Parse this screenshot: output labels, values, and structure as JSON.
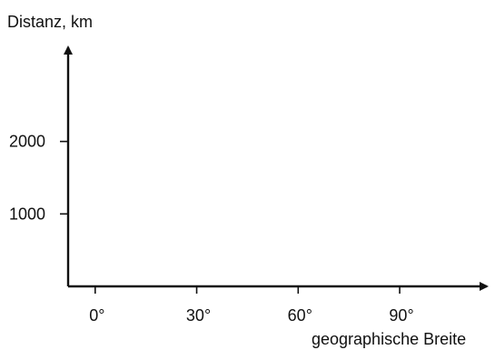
{
  "colors": {
    "ink": "#111111",
    "background": "#ffffff"
  },
  "chart_data": {
    "type": "line",
    "title": "",
    "xlabel": "geographische Breite",
    "ylabel": "Distanz, km",
    "x_ticks": [
      0,
      30,
      60,
      90
    ],
    "x_tick_labels": [
      "0°",
      "30°",
      "60°",
      "90°"
    ],
    "y_ticks": [
      1000,
      2000
    ],
    "y_tick_labels": [
      "1000",
      "2000"
    ],
    "xlim": [
      -8,
      112
    ],
    "ylim": [
      0,
      3300
    ],
    "grid": false,
    "legend": "none",
    "series": []
  }
}
